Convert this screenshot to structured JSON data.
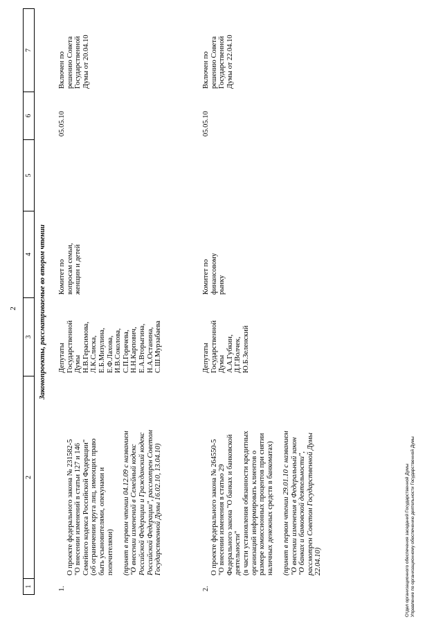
{
  "page_number": "2",
  "header_columns": [
    "1",
    "2",
    "3",
    "4",
    "5",
    "6",
    "7"
  ],
  "section_title": "Законопроекты, рассматриваемые во втором чтении",
  "rows": [
    {
      "num": "1.",
      "title": "О проекте федерального закона № 231582-5\n\"О внесении изменений в статьи 127 и 146\nСемейного кодекса Российской Федерации\"\n(об ограничении круга лиц, имеющих право\nбыть усыновителями, опекунами и\nпопечителями)",
      "note": "(принят в первом чтении 04.12.09 с названием\n\"О внесении изменений в Семейный кодекс\nРоссийской Федерации и Гражданский кодекс\nРоссийской Федерации\", рассмотрен Советом\nГосударственной Думы 16.02.10, 13.04.10)",
      "authors": "Депутаты\nГосударственной\nДумы\nН.В.Герасимова,\nЛ.К.Слиска,\nЕ.Б.Мизулина,\nЕ.Ф.Лахова,\nИ.В.Соколова,\nС.П.Горячева,\nН.Н.Карпович,\nЕ.А.Вторыгина,\nН.А.Останина,\nС.Ш.Мурзабаева",
      "committee": "Комитет по\nвопросам семьи,\nженщин и детей",
      "col5": "",
      "date": "05.05.10",
      "decision": "Включен по\nрешению Совета\nГосударственной\nДумы от 20.04.10"
    },
    {
      "num": "2.",
      "title": "О проекте федерального закона № 264550-5\n\"О внесении изменения в статью 29\nФедерального закона \"О банках и банковской\nдеятельности\"\n(в части установления обязанности кредитных\nорганизаций информировать клиентов о\nразмере комиссионных процентов при снятии\nналичных денежных средств в банкоматах)",
      "note": "(принят в первом чтении 29.01.10 с названием\n\"О внесении изменения в Федеральный закон\n\"О банках и банковской деятельности\",\nрассмотрен Советом Государственной Думы\n22.04.10)",
      "authors": "Депутаты\nГосударственной\nДумы\nА.А.Губкин,\nД.Г.Волчек,\nЮ.Б.Зеленский",
      "committee": "Комитет по\nфинансовому\nрынку",
      "col5": "",
      "date": "05.05.10",
      "decision": "Включен по\nрешению Совета\nГосударственной\nДумы от 22.04.10"
    }
  ],
  "footer": {
    "line1": "Отдел организационного обеспечения заседаний Государственной Думы",
    "line2": "Управление по организационному обеспечению деятельности Государственной Думы"
  }
}
